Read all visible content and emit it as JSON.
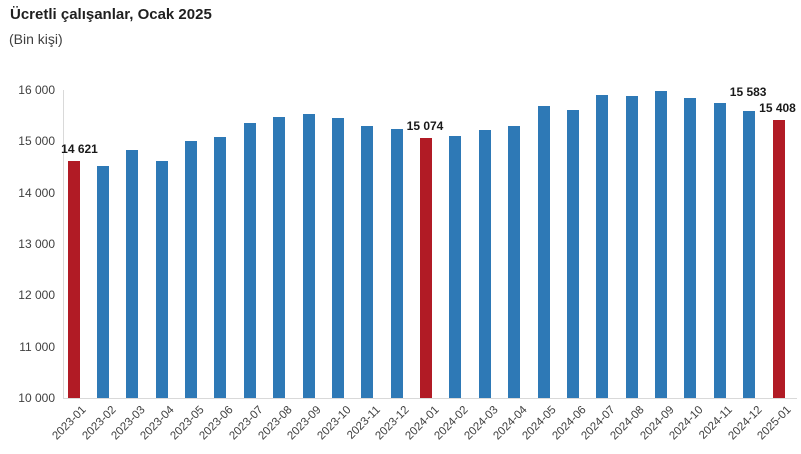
{
  "header": {
    "title": "Ücretli çalışanlar, Ocak 2025",
    "subtitle": "(Bin kişi)"
  },
  "colors": {
    "bar": "#2e79b6",
    "highlight": "#b11b25",
    "axis": "#d9d9d9",
    "tick_text": "#404040",
    "label_text": "#1a1a1a"
  },
  "chart_data": {
    "type": "bar",
    "title": "Ücretli çalışanlar, Ocak 2025",
    "subtitle": "(Bin kişi)",
    "unit": "Bin kişi (thousand persons)",
    "categories": [
      "2023-01",
      "2023-02",
      "2023-03",
      "2023-04",
      "2023-05",
      "2023-06",
      "2023-07",
      "2023-08",
      "2023-09",
      "2023-10",
      "2023-11",
      "2023-12",
      "2024-01",
      "2024-02",
      "2024-03",
      "2024-04",
      "2024-05",
      "2024-06",
      "2024-07",
      "2024-08",
      "2024-09",
      "2024-10",
      "2024-11",
      "2024-12",
      "2025-01"
    ],
    "values": [
      14621,
      14510,
      14840,
      14620,
      15010,
      15090,
      15350,
      15480,
      15540,
      15450,
      15300,
      15250,
      15074,
      15110,
      15230,
      15290,
      15680,
      15610,
      15910,
      15890,
      15990,
      15850,
      15740,
      15583,
      15408
    ],
    "highlighted_categories": [
      "2023-01",
      "2024-01",
      "2025-01"
    ],
    "data_labels": [
      {
        "category": "2023-01",
        "text": "14 621"
      },
      {
        "category": "2024-01",
        "text": "15 074"
      },
      {
        "category": "2024-12",
        "text": "15 583"
      },
      {
        "category": "2025-01",
        "text": "15 408"
      }
    ],
    "ylim": [
      10000,
      16000
    ],
    "ytick_step": 1000,
    "ytick_labels": [
      "10 000",
      "11 000",
      "12 000",
      "13 000",
      "14 000",
      "15 000",
      "16 000"
    ],
    "xlabel": "",
    "ylabel": "",
    "grid": false,
    "legend": false
  }
}
